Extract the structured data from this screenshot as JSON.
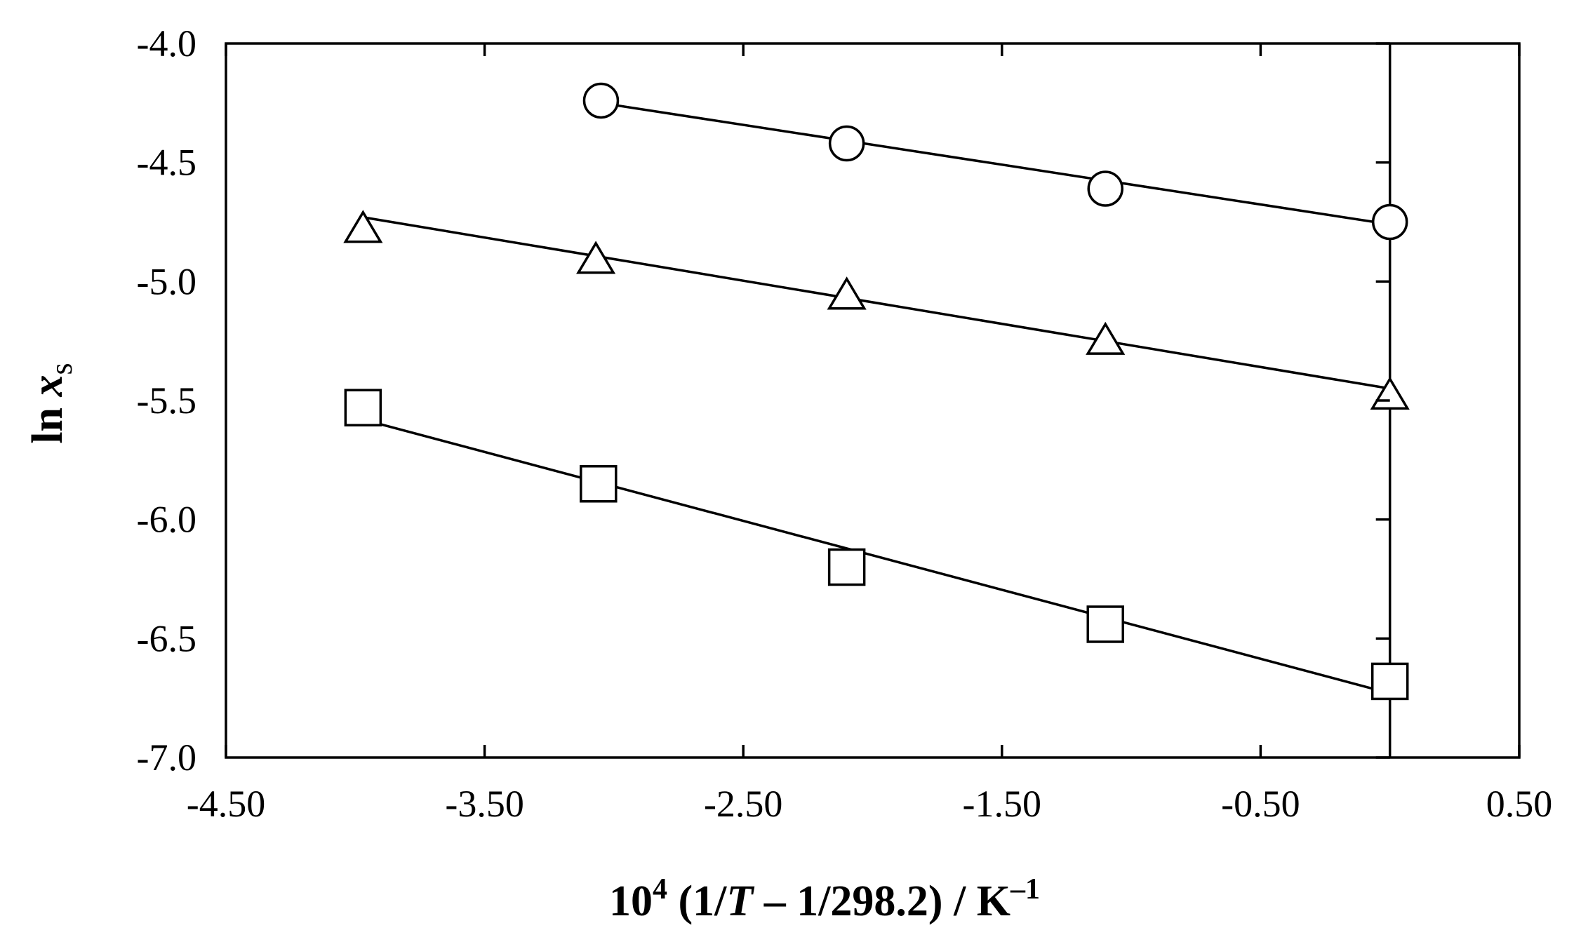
{
  "chart_data": {
    "type": "scatter",
    "xlabel_parts": {
      "base": "10",
      "exp": "4",
      "pre": " (1/",
      "var": "T",
      "post": " – 1/298.2) / K",
      "unit_exp": "–1"
    },
    "ylabel_parts": {
      "prefix": "ln ",
      "var": "x",
      "sub": "s"
    },
    "xlim": [
      -4.5,
      0.5
    ],
    "ylim": [
      -7.0,
      -4.0
    ],
    "xticks": [
      -4.5,
      -3.5,
      -2.5,
      -1.5,
      -0.5,
      0.5
    ],
    "xtick_labels": [
      "-4.50",
      "-3.50",
      "-2.50",
      "-1.50",
      "-0.50",
      "0.50"
    ],
    "yticks": [
      -4.0,
      -4.5,
      -5.0,
      -5.5,
      -6.0,
      -6.5,
      -7.0
    ],
    "ytick_labels": [
      "-4.0",
      "-4.5",
      "-5.0",
      "-5.5",
      "-6.0",
      "-6.5",
      "-7.0"
    ],
    "vertical_reference_x": 0.0,
    "grid": false,
    "legend": "none",
    "series": [
      {
        "marker": "circle",
        "x": [
          -3.05,
          -2.1,
          -1.1,
          0.0
        ],
        "y": [
          -4.24,
          -4.42,
          -4.61,
          -4.75
        ],
        "fit": {
          "x": [
            -3.05,
            0.0
          ],
          "y": [
            -4.25,
            -4.76
          ]
        }
      },
      {
        "marker": "triangle",
        "x": [
          -3.97,
          -3.07,
          -2.1,
          -1.1,
          0.0
        ],
        "y": [
          -4.78,
          -4.91,
          -5.06,
          -5.25,
          -5.48
        ],
        "fit": {
          "x": [
            -3.97,
            0.0
          ],
          "y": [
            -4.73,
            -5.45
          ]
        }
      },
      {
        "marker": "square",
        "x": [
          -3.97,
          -3.06,
          -2.1,
          -1.1,
          0.0
        ],
        "y": [
          -5.53,
          -5.85,
          -6.2,
          -6.44,
          -6.68
        ],
        "fit": {
          "x": [
            -3.97,
            0.0
          ],
          "y": [
            -5.58,
            -6.73
          ]
        }
      }
    ]
  }
}
